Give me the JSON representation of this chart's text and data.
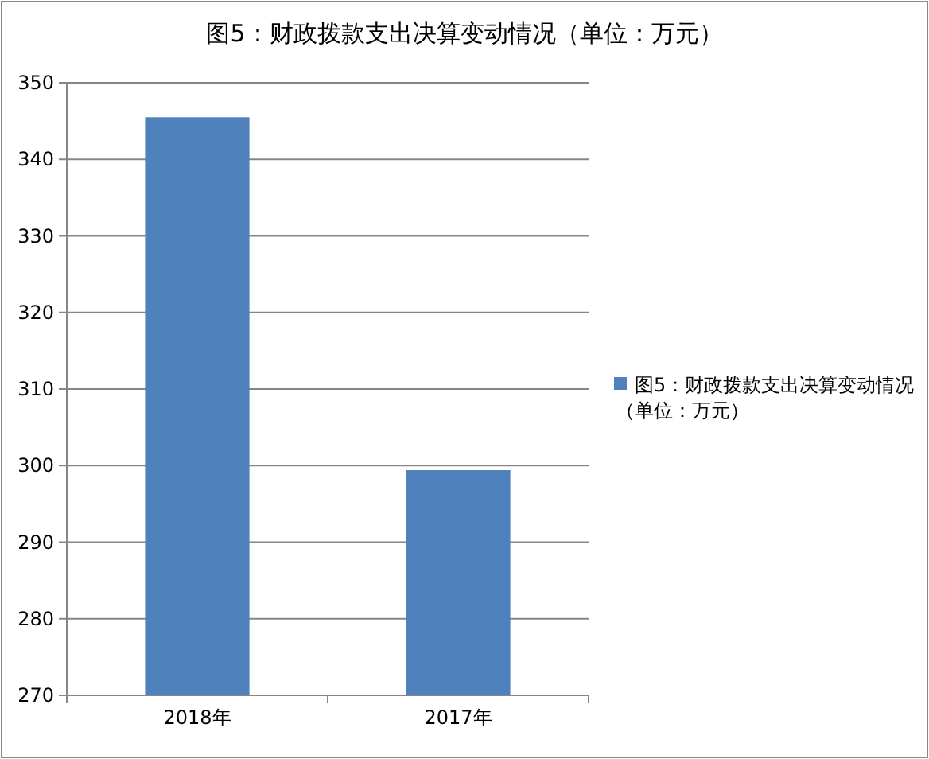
{
  "chart_data": {
    "type": "bar",
    "title": "图5：财政拨款支出决算变动情况（单位：万元）",
    "categories": [
      "2018年",
      "2017年"
    ],
    "series": [
      {
        "name": "图5：财政拨款支出决算变动情况（单位：万元）",
        "color": "#4f81bd",
        "values": [
          345.5,
          299.4
        ]
      }
    ],
    "ylim": [
      270,
      350
    ],
    "yticks": [
      270,
      280,
      290,
      300,
      310,
      320,
      330,
      340,
      350
    ],
    "grid": "y",
    "legend": "right"
  }
}
